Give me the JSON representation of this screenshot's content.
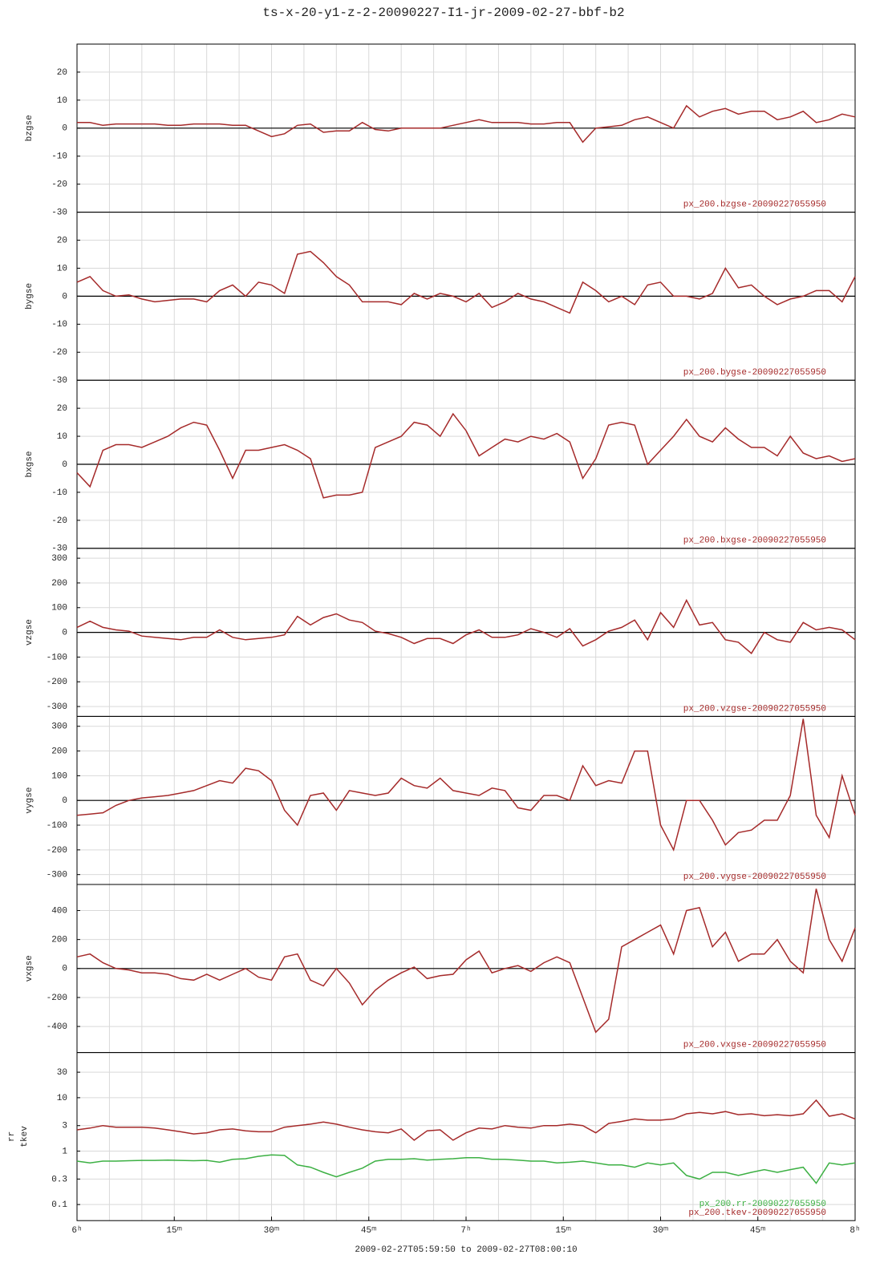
{
  "chart_data": [
    {
      "type": "line",
      "title": "ts-x-20-y1-z-2-20090227-I1-jr-2009-02-27-bbf-b2",
      "x": [
        0,
        2,
        4,
        6,
        8,
        10,
        12,
        14,
        16,
        18,
        20,
        22,
        24,
        26,
        28,
        30,
        32,
        34,
        36,
        38,
        40,
        42,
        44,
        46,
        48,
        50,
        52,
        54,
        56,
        58,
        60,
        62,
        64,
        66,
        68,
        70,
        72,
        74,
        76,
        78,
        80,
        82,
        84,
        86,
        88,
        90,
        92,
        94,
        96,
        98,
        100,
        102,
        104,
        106,
        108,
        110,
        112,
        114,
        116,
        118,
        120
      ],
      "xlim": [
        0,
        120
      ],
      "ylim": [
        -30,
        30
      ],
      "yticks": [
        20,
        10,
        0,
        -10,
        -20,
        -30
      ],
      "grid": true,
      "grid_step": 5,
      "series": [
        {
          "name": "bzgse",
          "color": "#a52a2a",
          "annotation": "px_200.bzgse-20090227055950",
          "values": [
            2,
            2,
            1,
            1.5,
            1.5,
            1.5,
            1.5,
            1,
            1,
            1.5,
            1.5,
            1.5,
            1,
            1,
            -1,
            -3,
            -2,
            1,
            1.5,
            -1.5,
            -1,
            -1,
            2,
            -0.5,
            -1,
            0,
            0,
            0,
            0,
            1,
            2,
            3,
            2,
            2,
            2,
            1.5,
            1.5,
            2,
            2,
            -5,
            0,
            0.5,
            1,
            3,
            4,
            2,
            0,
            8,
            4,
            6,
            7,
            5,
            6,
            6,
            3,
            4,
            6,
            2,
            3,
            5,
            4
          ]
        }
      ]
    },
    {
      "type": "line",
      "x": [
        0,
        2,
        4,
        6,
        8,
        10,
        12,
        14,
        16,
        18,
        20,
        22,
        24,
        26,
        28,
        30,
        32,
        34,
        36,
        38,
        40,
        42,
        44,
        46,
        48,
        50,
        52,
        54,
        56,
        58,
        60,
        62,
        64,
        66,
        68,
        70,
        72,
        74,
        76,
        78,
        80,
        82,
        84,
        86,
        88,
        90,
        92,
        94,
        96,
        98,
        100,
        102,
        104,
        106,
        108,
        110,
        112,
        114,
        116,
        118,
        120
      ],
      "xlim": [
        0,
        120
      ],
      "ylim": [
        -30,
        30
      ],
      "yticks": [
        20,
        10,
        0,
        -10,
        -20,
        -30
      ],
      "grid": true,
      "grid_step": 5,
      "series": [
        {
          "name": "bygse",
          "color": "#a52a2a",
          "annotation": "px_200.bygse-20090227055950",
          "values": [
            5,
            7,
            2,
            0,
            0.5,
            -1,
            -2,
            -1.5,
            -1,
            -1,
            -2,
            2,
            4,
            0,
            5,
            4,
            1,
            15,
            16,
            12,
            7,
            4,
            -2,
            -2,
            -2,
            -3,
            1,
            -1,
            1,
            0,
            -2,
            1,
            -4,
            -2,
            1,
            -1,
            -2,
            -4,
            -6,
            5,
            2,
            -2,
            0,
            -3,
            4,
            5,
            0,
            0,
            -1,
            1,
            10,
            3,
            4,
            0,
            -3,
            -1,
            0,
            2,
            2,
            -2,
            7
          ]
        }
      ]
    },
    {
      "type": "line",
      "x": [
        0,
        2,
        4,
        6,
        8,
        10,
        12,
        14,
        16,
        18,
        20,
        22,
        24,
        26,
        28,
        30,
        32,
        34,
        36,
        38,
        40,
        42,
        44,
        46,
        48,
        50,
        52,
        54,
        56,
        58,
        60,
        62,
        64,
        66,
        68,
        70,
        72,
        74,
        76,
        78,
        80,
        82,
        84,
        86,
        88,
        90,
        92,
        94,
        96,
        98,
        100,
        102,
        104,
        106,
        108,
        110,
        112,
        114,
        116,
        118,
        120
      ],
      "xlim": [
        0,
        120
      ],
      "ylim": [
        -30,
        30
      ],
      "yticks": [
        20,
        10,
        0,
        -10,
        -20,
        -30
      ],
      "grid": true,
      "grid_step": 5,
      "series": [
        {
          "name": "bxgse",
          "color": "#a52a2a",
          "annotation": "px_200.bxgse-20090227055950",
          "values": [
            -3,
            -8,
            5,
            7,
            7,
            6,
            8,
            10,
            13,
            15,
            14,
            5,
            -5,
            5,
            5,
            6,
            7,
            5,
            2,
            -12,
            -11,
            -11,
            -10,
            6,
            8,
            10,
            15,
            14,
            10,
            18,
            12,
            3,
            6,
            9,
            8,
            10,
            9,
            11,
            8,
            -5,
            2,
            14,
            15,
            14,
            0,
            5,
            10,
            16,
            10,
            8,
            13,
            9,
            6,
            6,
            3,
            10,
            4,
            2,
            3,
            1,
            2
          ]
        }
      ]
    },
    {
      "type": "line",
      "x": [
        0,
        2,
        4,
        6,
        8,
        10,
        12,
        14,
        16,
        18,
        20,
        22,
        24,
        26,
        28,
        30,
        32,
        34,
        36,
        38,
        40,
        42,
        44,
        46,
        48,
        50,
        52,
        54,
        56,
        58,
        60,
        62,
        64,
        66,
        68,
        70,
        72,
        74,
        76,
        78,
        80,
        82,
        84,
        86,
        88,
        90,
        92,
        94,
        96,
        98,
        100,
        102,
        104,
        106,
        108,
        110,
        112,
        114,
        116,
        118,
        120
      ],
      "xlim": [
        0,
        120
      ],
      "ylim": [
        -340,
        340
      ],
      "yticks": [
        300,
        200,
        100,
        0,
        -100,
        -200,
        -300
      ],
      "grid": true,
      "grid_step": 5,
      "series": [
        {
          "name": "vzgse",
          "color": "#a52a2a",
          "annotation": "px_200.vzgse-20090227055950",
          "values": [
            20,
            45,
            20,
            10,
            5,
            -15,
            -20,
            -25,
            -30,
            -20,
            -20,
            10,
            -20,
            -30,
            -25,
            -20,
            -10,
            65,
            30,
            60,
            75,
            50,
            40,
            5,
            -5,
            -20,
            -45,
            -25,
            -25,
            -45,
            -10,
            10,
            -20,
            -20,
            -10,
            15,
            0,
            -20,
            15,
            -55,
            -30,
            5,
            20,
            50,
            -30,
            80,
            20,
            130,
            30,
            40,
            -30,
            -40,
            -85,
            0,
            -30,
            -40,
            40,
            10,
            20,
            10,
            -30
          ]
        }
      ]
    },
    {
      "type": "line",
      "x": [
        0,
        2,
        4,
        6,
        8,
        10,
        12,
        14,
        16,
        18,
        20,
        22,
        24,
        26,
        28,
        30,
        32,
        34,
        36,
        38,
        40,
        42,
        44,
        46,
        48,
        50,
        52,
        54,
        56,
        58,
        60,
        62,
        64,
        66,
        68,
        70,
        72,
        74,
        76,
        78,
        80,
        82,
        84,
        86,
        88,
        90,
        92,
        94,
        96,
        98,
        100,
        102,
        104,
        106,
        108,
        110,
        112,
        114,
        116,
        118,
        120
      ],
      "xlim": [
        0,
        120
      ],
      "ylim": [
        -340,
        340
      ],
      "yticks": [
        300,
        200,
        100,
        0,
        -100,
        -200,
        -300
      ],
      "grid": true,
      "grid_step": 5,
      "series": [
        {
          "name": "vygse",
          "color": "#a52a2a",
          "annotation": "px_200.vygse-20090227055950",
          "values": [
            -60,
            -55,
            -50,
            -20,
            0,
            10,
            15,
            20,
            30,
            40,
            60,
            80,
            70,
            130,
            120,
            80,
            -40,
            -100,
            20,
            30,
            -40,
            40,
            30,
            20,
            30,
            90,
            60,
            50,
            90,
            40,
            30,
            20,
            50,
            40,
            -30,
            -40,
            20,
            20,
            0,
            140,
            60,
            80,
            70,
            200,
            200,
            -100,
            -200,
            0,
            0,
            -80,
            -180,
            -130,
            -120,
            -80,
            -80,
            20,
            330,
            -60,
            -150,
            100,
            -60
          ]
        }
      ]
    },
    {
      "type": "line",
      "x": [
        0,
        2,
        4,
        6,
        8,
        10,
        12,
        14,
        16,
        18,
        20,
        22,
        24,
        26,
        28,
        30,
        32,
        34,
        36,
        38,
        40,
        42,
        44,
        46,
        48,
        50,
        52,
        54,
        56,
        58,
        60,
        62,
        64,
        66,
        68,
        70,
        72,
        74,
        76,
        78,
        80,
        82,
        84,
        86,
        88,
        90,
        92,
        94,
        96,
        98,
        100,
        102,
        104,
        106,
        108,
        110,
        112,
        114,
        116,
        118,
        120
      ],
      "xlim": [
        0,
        120
      ],
      "ylim": [
        -580,
        580
      ],
      "yticks": [
        400,
        200,
        0,
        -200,
        -400
      ],
      "grid": true,
      "grid_step": 5,
      "series": [
        {
          "name": "vxgse",
          "color": "#a52a2a",
          "annotation": "px_200.vxgse-20090227055950",
          "values": [
            80,
            100,
            40,
            0,
            -10,
            -30,
            -30,
            -40,
            -70,
            -80,
            -40,
            -80,
            -40,
            0,
            -60,
            -80,
            80,
            100,
            -80,
            -120,
            0,
            -100,
            -250,
            -150,
            -80,
            -30,
            10,
            -70,
            -50,
            -40,
            60,
            120,
            -30,
            0,
            20,
            -20,
            40,
            80,
            40,
            -200,
            -440,
            -350,
            150,
            200,
            250,
            300,
            100,
            400,
            420,
            150,
            250,
            50,
            100,
            100,
            200,
            50,
            -30,
            550,
            200,
            50,
            280
          ]
        }
      ]
    },
    {
      "type": "line",
      "log": true,
      "xlabel": "2009-02-27T05:59:50 to 2009-02-27T08:00:10",
      "x": [
        0,
        2,
        4,
        6,
        8,
        10,
        12,
        14,
        16,
        18,
        20,
        22,
        24,
        26,
        28,
        30,
        32,
        34,
        36,
        38,
        40,
        42,
        44,
        46,
        48,
        50,
        52,
        54,
        56,
        58,
        60,
        62,
        64,
        66,
        68,
        70,
        72,
        74,
        76,
        78,
        80,
        82,
        84,
        86,
        88,
        90,
        92,
        94,
        96,
        98,
        100,
        102,
        104,
        106,
        108,
        110,
        112,
        114,
        116,
        118,
        120
      ],
      "xlim": [
        0,
        120
      ],
      "ylim": [
        0.05,
        70
      ],
      "yticks": [
        30,
        10,
        3,
        1,
        0.3,
        0.1
      ],
      "grid": true,
      "grid_step": 5,
      "xticks": [
        {
          "value": 0,
          "label": "6ʰ"
        },
        {
          "value": 15,
          "label": "15ᵐ"
        },
        {
          "value": 30,
          "label": "30ᵐ"
        },
        {
          "value": 45,
          "label": "45ᵐ"
        },
        {
          "value": 60,
          "label": "7ʰ"
        },
        {
          "value": 75,
          "label": "15ᵐ"
        },
        {
          "value": 90,
          "label": "30ᵐ"
        },
        {
          "value": 105,
          "label": "45ᵐ"
        },
        {
          "value": 120,
          "label": "8ʰ"
        }
      ],
      "series": [
        {
          "name": "rr",
          "color": "#3cb043",
          "annotation": "px_200.rr-20090227055950",
          "values": [
            0.65,
            0.6,
            0.65,
            0.65,
            0.66,
            0.67,
            0.67,
            0.68,
            0.67,
            0.66,
            0.67,
            0.62,
            0.7,
            0.72,
            0.8,
            0.85,
            0.83,
            0.55,
            0.5,
            0.4,
            0.33,
            0.4,
            0.48,
            0.65,
            0.7,
            0.7,
            0.72,
            0.68,
            0.7,
            0.72,
            0.75,
            0.75,
            0.7,
            0.7,
            0.68,
            0.65,
            0.65,
            0.6,
            0.62,
            0.65,
            0.6,
            0.55,
            0.55,
            0.5,
            0.6,
            0.55,
            0.6,
            0.35,
            0.3,
            0.4,
            0.4,
            0.35,
            0.4,
            0.45,
            0.4,
            0.45,
            0.5,
            0.25,
            0.6,
            0.55,
            0.6
          ]
        },
        {
          "name": "tkev",
          "color": "#a52a2a",
          "annotation": "px_200.tkev-20090227055950",
          "values": [
            2.5,
            2.7,
            3,
            2.8,
            2.8,
            2.8,
            2.7,
            2.5,
            2.3,
            2.1,
            2.2,
            2.5,
            2.6,
            2.4,
            2.3,
            2.3,
            2.8,
            3,
            3.2,
            3.5,
            3.2,
            2.8,
            2.5,
            2.3,
            2.2,
            2.6,
            1.6,
            2.4,
            2.5,
            1.6,
            2.2,
            2.7,
            2.6,
            3,
            2.8,
            2.7,
            3,
            3,
            3.2,
            3,
            2.2,
            3.3,
            3.6,
            4,
            3.8,
            3.8,
            4,
            5,
            5.3,
            5,
            5.5,
            4.8,
            5,
            4.6,
            4.8,
            4.6,
            5,
            9,
            4.5,
            5,
            4
          ]
        }
      ]
    }
  ]
}
